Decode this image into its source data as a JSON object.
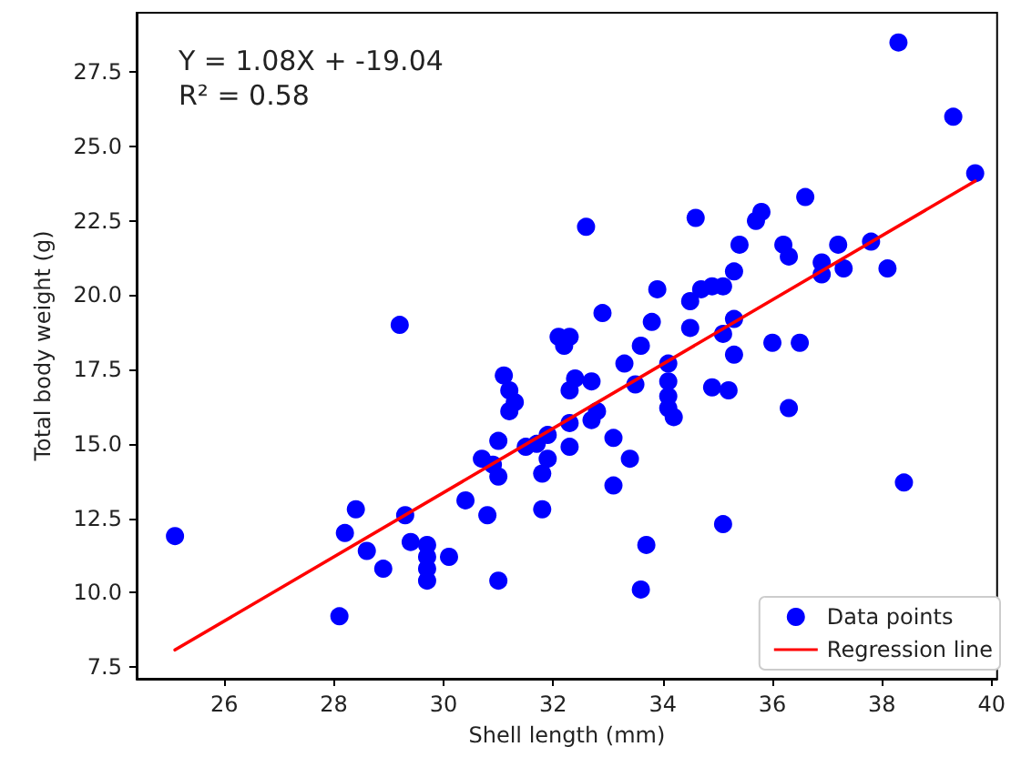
{
  "chart_data": {
    "type": "scatter",
    "xlabel": "Shell length (mm)",
    "ylabel": "Total body weight (g)",
    "annotations": [
      "Y = 1.08X + -19.04",
      "R² = 0.58"
    ],
    "xlim": [
      24.4,
      40.1
    ],
    "ylim": [
      7.1,
      29.5
    ],
    "xticks": [
      26,
      28,
      30,
      32,
      34,
      36,
      38,
      40
    ],
    "yticks": [
      {
        "value": 7.5,
        "label": "7.5"
      },
      {
        "value": 10,
        "label": "10.0"
      },
      {
        "value": 12.5,
        "label": "12.5"
      },
      {
        "value": 15,
        "label": "15.0"
      },
      {
        "value": 17.5,
        "label": "17.5"
      },
      {
        "value": 20,
        "label": "20.0"
      },
      {
        "value": 22.5,
        "label": "22.5"
      },
      {
        "value": 25,
        "label": "25.0"
      },
      {
        "value": 27.5,
        "label": "27.5"
      }
    ],
    "grid": false,
    "legend": "bottom right",
    "marker": "circle",
    "series": [
      {
        "name": "Data points",
        "type": "scatter",
        "color": "#0000ff",
        "x": [
          25.1,
          28.1,
          28.2,
          28.4,
          28.6,
          28.9,
          29.3,
          29.2,
          29.4,
          29.7,
          29.7,
          29.7,
          29.7,
          30.1,
          30.4,
          30.7,
          30.8,
          30.9,
          31.0,
          31.0,
          31.0,
          31.1,
          31.2,
          31.3,
          31.2,
          31.5,
          31.7,
          31.8,
          31.8,
          31.9,
          31.9,
          32.1,
          32.3,
          32.2,
          32.3,
          32.3,
          32.3,
          32.4,
          32.6,
          32.7,
          32.8,
          32.7,
          32.9,
          33.1,
          33.1,
          33.3,
          33.4,
          33.5,
          33.6,
          33.6,
          33.7,
          33.8,
          33.9,
          34.1,
          34.1,
          34.1,
          34.1,
          34.2,
          34.5,
          34.5,
          34.6,
          34.7,
          34.9,
          35.1,
          34.9,
          35.2,
          35.1,
          35.1,
          35.3,
          35.3,
          35.4,
          35.3,
          35.7,
          35.8,
          36.0,
          36.2,
          36.3,
          36.3,
          36.5,
          36.6,
          36.9,
          36.9,
          37.2,
          37.3,
          37.8,
          38.1,
          38.3,
          38.4,
          39.3,
          39.7
        ],
        "values": [
          11.9,
          9.2,
          12.0,
          12.8,
          11.4,
          10.8,
          12.6,
          19.0,
          11.7,
          11.6,
          11.2,
          10.8,
          10.4,
          11.2,
          13.1,
          14.5,
          12.6,
          14.3,
          15.1,
          13.9,
          10.4,
          17.3,
          16.8,
          16.4,
          16.1,
          14.9,
          15.0,
          12.8,
          14.0,
          14.5,
          15.3,
          18.6,
          18.6,
          18.3,
          16.8,
          15.7,
          14.9,
          17.2,
          22.3,
          15.8,
          16.1,
          17.1,
          19.4,
          15.2,
          13.6,
          17.7,
          14.5,
          17.0,
          18.3,
          10.1,
          11.6,
          19.1,
          20.2,
          16.2,
          16.6,
          17.1,
          17.7,
          15.9,
          18.9,
          19.8,
          22.6,
          20.2,
          20.3,
          20.3,
          16.9,
          16.8,
          12.3,
          18.7,
          18.0,
          19.2,
          21.7,
          20.8,
          22.5,
          22.8,
          18.4,
          21.7,
          21.3,
          16.2,
          18.4,
          23.3,
          21.1,
          20.7,
          21.7,
          20.9,
          21.8,
          20.9,
          28.5,
          13.7,
          26.0,
          24.1
        ]
      },
      {
        "name": "Regression line",
        "type": "line",
        "color": "#ff0000",
        "marker": "none",
        "line_style": "solid",
        "x": [
          25.1,
          39.7
        ],
        "values": [
          8.07,
          23.84
        ]
      }
    ]
  }
}
